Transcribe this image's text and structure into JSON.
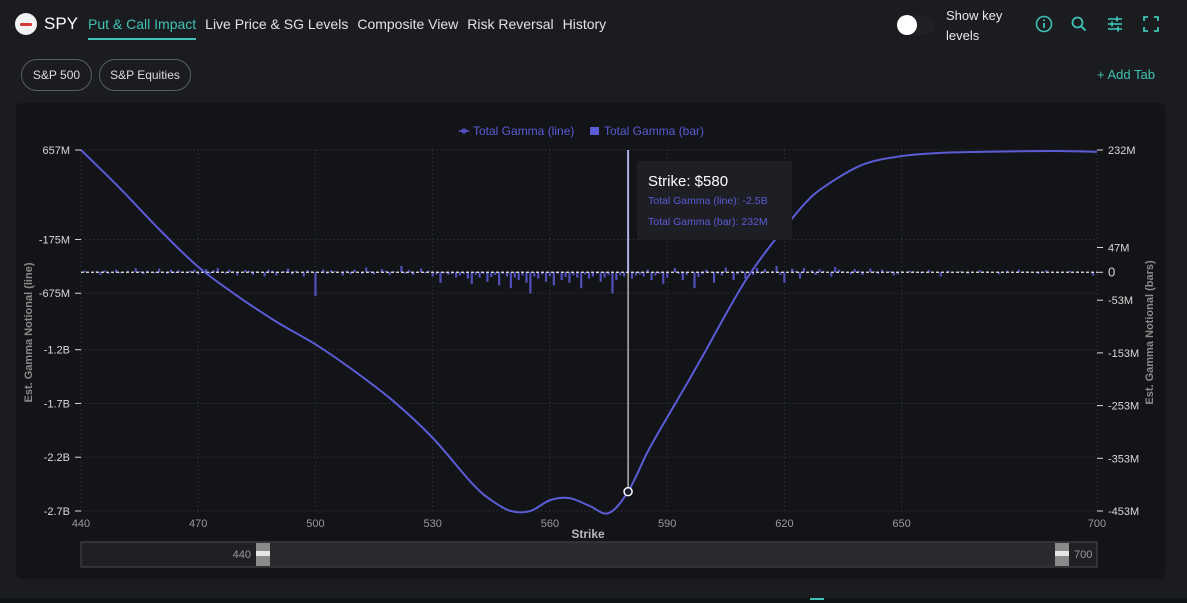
{
  "header": {
    "ticker": "SPY",
    "tabs": [
      {
        "label": "Put & Call Impact",
        "active": true
      },
      {
        "label": "Live Price & SG Levels",
        "active": false
      },
      {
        "label": "Composite View",
        "active": false
      },
      {
        "label": "Risk Reversal",
        "active": false
      },
      {
        "label": "History",
        "active": false
      }
    ],
    "toggle_label": "Show key levels",
    "toggle_on": false,
    "icons": [
      "info-icon",
      "search-icon",
      "settings-sliders-icon",
      "fullscreen-icon"
    ]
  },
  "filters": {
    "pills": [
      "S&P 500",
      "S&P Equities"
    ],
    "add_tab": "+ Add Tab"
  },
  "colors": {
    "accent": "#3fc2b5",
    "series": "#5b5bd6",
    "background": "#1b1c1f",
    "panel": "#131417"
  },
  "tooltip": {
    "title": "Strike: $580",
    "line_text": "Total Gamma (line): -2.5B",
    "bar_text": "Total Gamma (bar): 232M"
  },
  "range_slider": {
    "min_label": "440",
    "max_label": "700"
  },
  "chart_data": {
    "type": "bar+line",
    "legend": [
      "Total Gamma (line)",
      "Total Gamma (bar)"
    ],
    "xlabel": "Strike",
    "ylabel_left": "Est. Gamma Notional (line)",
    "ylabel_right": "Est. Gamma Notional (bars)",
    "xlim": [
      440,
      700
    ],
    "x_ticks": [
      "440",
      "470",
      "500",
      "530",
      "560",
      "590",
      "620",
      "650",
      "700"
    ],
    "left_ticks": [
      "657M",
      "-175M",
      "-675M",
      "-1.2B",
      "-1.7B",
      "-2.2B",
      "-2.7B"
    ],
    "right_ticks": [
      "232M",
      "47M",
      "0",
      "-53M",
      "-153M",
      "-253M",
      "-353M",
      "-453M"
    ],
    "ylim_left_millions": [
      -2700,
      657
    ],
    "ylim_right_millions": [
      -453,
      232
    ],
    "hover_strike": 580,
    "line": {
      "name": "Total Gamma (line)",
      "x": [
        440,
        450,
        460,
        470,
        480,
        490,
        500,
        510,
        520,
        530,
        540,
        545,
        550,
        555,
        560,
        565,
        570,
        575,
        580,
        585,
        590,
        595,
        600,
        605,
        610,
        615,
        620,
        625,
        630,
        640,
        650,
        660,
        670,
        680,
        690,
        700
      ],
      "y": [
        657,
        300,
        -80,
        -430,
        -700,
        -940,
        -1150,
        -1400,
        -1680,
        -2020,
        -2440,
        -2600,
        -2700,
        -2700,
        -2600,
        -2580,
        -2650,
        -2720,
        -2520,
        -2150,
        -1830,
        -1520,
        -1200,
        -870,
        -560,
        -300,
        -70,
        150,
        310,
        520,
        600,
        630,
        640,
        645,
        648,
        640
      ]
    },
    "bars": {
      "name": "Total Gamma (bar)",
      "x": [
        441,
        444,
        445,
        446,
        447,
        449,
        450,
        452,
        454,
        455,
        456,
        457,
        459,
        460,
        462,
        463,
        464,
        465,
        467,
        468,
        469,
        470,
        472,
        473,
        474,
        475,
        477,
        478,
        479,
        480,
        482,
        483,
        484,
        485,
        487,
        488,
        489,
        490,
        492,
        493,
        494,
        495,
        497,
        498,
        499,
        500,
        502,
        503,
        504,
        505,
        507,
        508,
        509,
        510,
        512,
        513,
        514,
        515,
        517,
        518,
        519,
        520,
        522,
        523,
        524,
        525,
        527,
        528,
        529,
        530,
        531,
        532,
        533,
        534,
        535,
        536,
        537,
        538,
        539,
        540,
        541,
        542,
        543,
        544,
        545,
        546,
        547,
        548,
        549,
        550,
        551,
        552,
        553,
        554,
        555,
        556,
        557,
        558,
        559,
        560,
        561,
        562,
        563,
        564,
        565,
        566,
        567,
        568,
        569,
        570,
        571,
        572,
        573,
        574,
        575,
        576,
        577,
        578,
        579,
        580,
        581,
        582,
        583,
        584,
        585,
        586,
        587,
        588,
        589,
        590,
        592,
        593,
        594,
        595,
        597,
        598,
        599,
        600,
        602,
        603,
        604,
        605,
        607,
        608,
        609,
        610,
        612,
        613,
        614,
        615,
        617,
        618,
        619,
        620,
        622,
        623,
        624,
        625,
        627,
        628,
        629,
        630,
        632,
        633,
        634,
        635,
        637,
        638,
        639,
        640,
        642,
        643,
        644,
        645,
        647,
        648,
        649,
        650,
        652,
        653,
        655,
        657,
        660,
        662,
        665,
        667,
        670,
        672,
        675,
        677,
        680,
        682,
        685,
        687,
        690,
        693,
        695,
        699
      ],
      "y": [
        3,
        2,
        -5,
        4,
        -3,
        5,
        -2,
        3,
        8,
        2,
        -4,
        3,
        -2,
        7,
        -3,
        5,
        -1,
        4,
        -2,
        3,
        5,
        -4,
        6,
        -3,
        4,
        8,
        -3,
        5,
        2,
        -6,
        4,
        3,
        -5,
        2,
        -8,
        5,
        3,
        -6,
        2,
        7,
        -4,
        3,
        -8,
        4,
        2,
        -45,
        5,
        -3,
        4,
        2,
        -6,
        3,
        -4,
        5,
        -3,
        9,
        2,
        -4,
        6,
        3,
        -5,
        2,
        12,
        -3,
        4,
        -5,
        7,
        -2,
        3,
        -8,
        -4,
        -20,
        -2,
        -5,
        -3,
        -10,
        -6,
        -3,
        -12,
        -22,
        -5,
        -10,
        -3,
        -18,
        -9,
        -5,
        -25,
        -3,
        -8,
        -30,
        -10,
        -15,
        -6,
        -20,
        -40,
        -8,
        -12,
        -4,
        -18,
        -8,
        -25,
        -3,
        -15,
        -9,
        -20,
        -6,
        -10,
        -30,
        -4,
        -12,
        -8,
        -3,
        -18,
        -10,
        -5,
        -40,
        -15,
        -6,
        -8,
        232,
        -12,
        -6,
        -4,
        -8,
        5,
        -15,
        -6,
        -3,
        -22,
        -10,
        8,
        -3,
        -15,
        -5,
        -30,
        -9,
        -4,
        5,
        -20,
        -3,
        -6,
        9,
        -15,
        -4,
        3,
        -12,
        -5,
        8,
        -3,
        6,
        2,
        12,
        -5,
        -20,
        7,
        3,
        -12,
        8,
        4,
        -5,
        6,
        3,
        -8,
        10,
        5,
        2,
        -4,
        6,
        3,
        -5,
        7,
        2,
        -3,
        5,
        2,
        -6,
        -4,
        2,
        3,
        2,
        -2,
        4,
        -8,
        3,
        2,
        -3,
        4,
        2,
        -4,
        3,
        5,
        2,
        -3,
        4,
        -2,
        3,
        2,
        -6
      ]
    }
  }
}
